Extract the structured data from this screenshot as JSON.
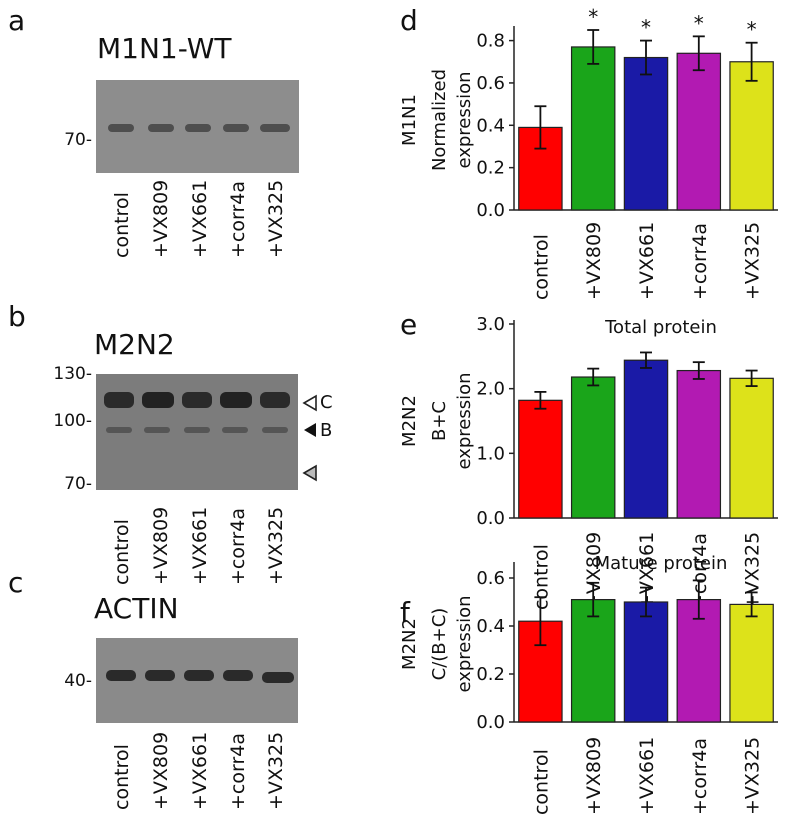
{
  "panels": {
    "a": {
      "letter": "a",
      "title": "M1N1-WT",
      "markers": [
        "70-"
      ]
    },
    "b": {
      "letter": "b",
      "title": "M2N2",
      "markers": [
        "130-",
        "100-",
        "70-"
      ],
      "arrows": [
        "C",
        "B"
      ]
    },
    "c": {
      "letter": "c",
      "title": "ACTIN",
      "markers": [
        "40-"
      ]
    },
    "d": {
      "letter": "d"
    },
    "e": {
      "letter": "e"
    },
    "f": {
      "letter": "f"
    }
  },
  "lanes": [
    "control",
    "+VX809",
    "+VX661",
    "+corr4a",
    "+VX325"
  ],
  "colors": {
    "control": "#ff0000",
    "+VX809": "#1aa51a",
    "+VX661": "#1a1aa6",
    "+corr4a": "#b21ab2",
    "+VX325": "#dde21a"
  },
  "chart_data": [
    {
      "type": "bar",
      "panel": "d",
      "title": "",
      "ylabel": [
        "M1N1",
        "Normalized",
        "expression"
      ],
      "categories": [
        "control",
        "+VX809",
        "+VX661",
        "+corr4a",
        "+VX325"
      ],
      "values": [
        0.39,
        0.77,
        0.72,
        0.74,
        0.7
      ],
      "errors": [
        0.1,
        0.08,
        0.08,
        0.08,
        0.09
      ],
      "significance": [
        "",
        "*",
        "*",
        "*",
        "*"
      ],
      "ylim": [
        0,
        0.85
      ],
      "yticks": [
        "0.0",
        "0.2",
        "0.4",
        "0.6",
        "0.8"
      ]
    },
    {
      "type": "bar",
      "panel": "e",
      "title": "Total protein",
      "ylabel": [
        "M2N2",
        "B+C",
        "expression"
      ],
      "categories": [
        "control",
        "+VX809",
        "+VX661",
        "+corr4a",
        "+VX325"
      ],
      "values": [
        1.82,
        2.18,
        2.44,
        2.28,
        2.16
      ],
      "errors": [
        0.13,
        0.13,
        0.12,
        0.13,
        0.12
      ],
      "significance": [
        "",
        "",
        "",
        "",
        ""
      ],
      "ylim": [
        0,
        3.0
      ],
      "yticks": [
        "0.0",
        "1.0",
        "2.0",
        "3.0"
      ]
    },
    {
      "type": "bar",
      "panel": "f",
      "title": "Mature protein",
      "ylabel": [
        "M2N2",
        "C/(B+C)",
        "expression"
      ],
      "categories": [
        "control",
        "+VX809",
        "+VX661",
        "+corr4a",
        "+VX325"
      ],
      "values": [
        0.42,
        0.51,
        0.5,
        0.51,
        0.49
      ],
      "errors": [
        0.1,
        0.07,
        0.06,
        0.08,
        0.05
      ],
      "significance": [
        "",
        "",
        "",
        "",
        ""
      ],
      "ylim": [
        0,
        0.65
      ],
      "yticks": [
        "0.0",
        "0.2",
        "0.4",
        "0.6"
      ]
    }
  ]
}
